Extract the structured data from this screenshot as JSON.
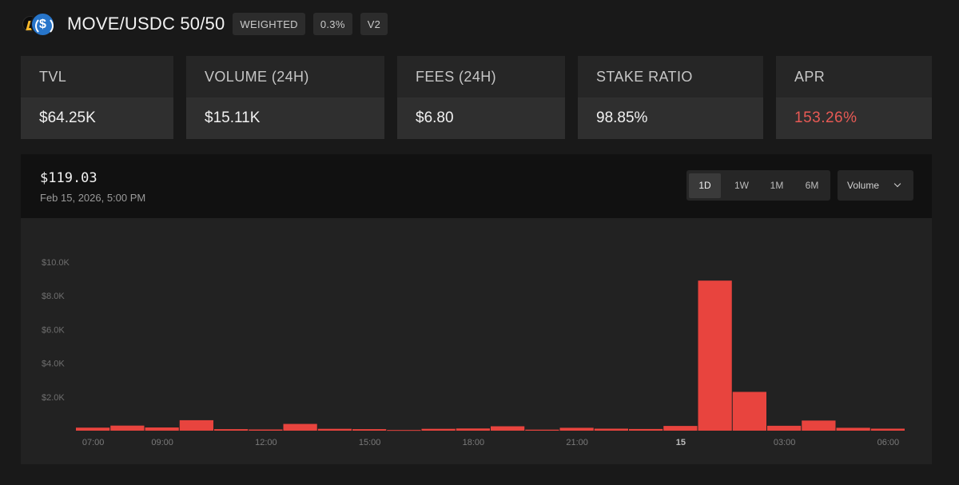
{
  "header": {
    "title": "MOVE/USDC 50/50",
    "tags": [
      "WEIGHTED",
      "0.3%",
      "V2"
    ],
    "icons": [
      "move-token-icon",
      "usdc-token-icon"
    ]
  },
  "stats": [
    {
      "label": "TVL",
      "value": "$64.25K"
    },
    {
      "label": "VOLUME (24H)",
      "value": "$15.11K"
    },
    {
      "label": "FEES (24H)",
      "value": "$6.80"
    },
    {
      "label": "STAKE RATIO",
      "value": "98.85%"
    },
    {
      "label": "APR",
      "value": "153.26%"
    }
  ],
  "chart_header": {
    "price": "$119.03",
    "timestamp": "Feb 15, 2026, 5:00 PM",
    "ranges": [
      "1D",
      "1W",
      "1M",
      "6M"
    ],
    "active_range": "1D",
    "metric": "Volume"
  },
  "colors": {
    "accent": "#e8443e",
    "apr": "#e85a55"
  },
  "chart_data": {
    "type": "bar",
    "ylim": [
      0,
      10000
    ],
    "yticks": [
      "$2.0K",
      "$4.0K",
      "$6.0K",
      "$8.0K",
      "$10.0K"
    ],
    "ytick_values": [
      2000,
      4000,
      6000,
      8000,
      10000
    ],
    "xtick_labels": [
      "07:00",
      "09:00",
      "12:00",
      "15:00",
      "18:00",
      "21:00",
      "15",
      "03:00",
      "06:00"
    ],
    "xtick_bar_index": [
      0,
      2,
      5,
      8,
      11,
      14,
      17,
      20,
      23
    ],
    "values": [
      180,
      300,
      190,
      620,
      90,
      70,
      400,
      110,
      90,
      40,
      110,
      130,
      260,
      60,
      170,
      120,
      100,
      280,
      8900,
      2300,
      290,
      600,
      170,
      120
    ]
  }
}
